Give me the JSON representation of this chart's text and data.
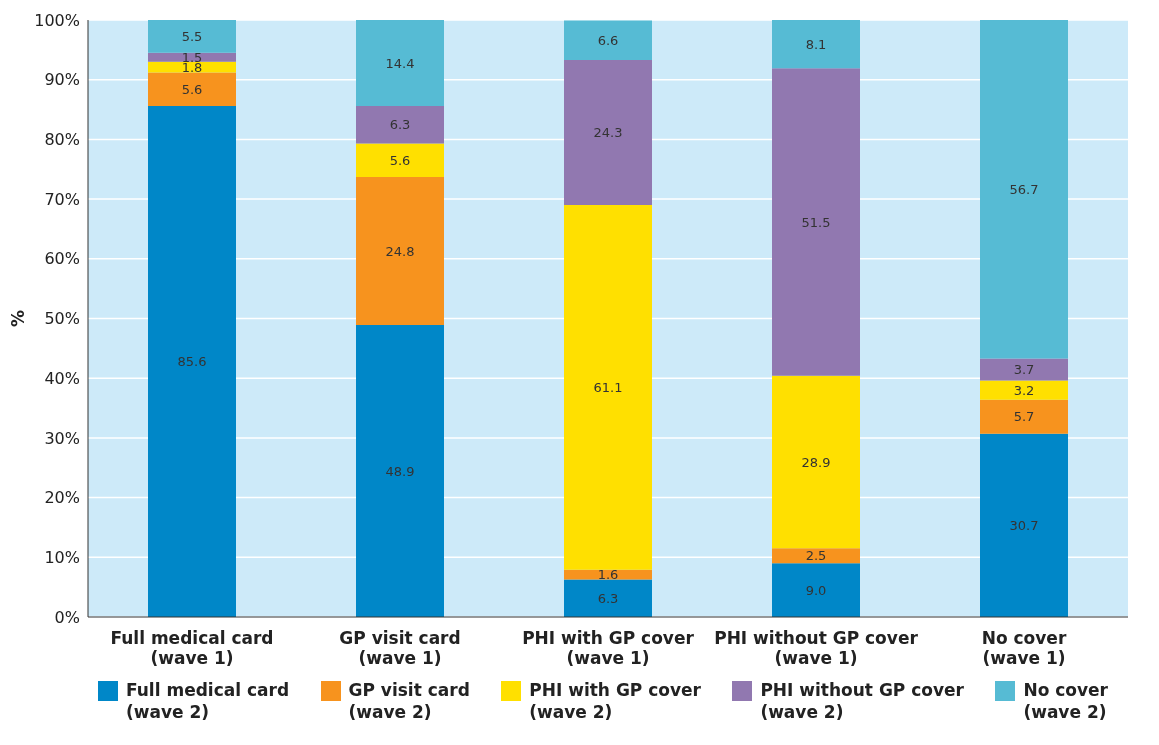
{
  "chart_data": {
    "type": "bar",
    "stacked": true,
    "ylabel": "%",
    "categories": [
      "Full medical card\n(wave 1)",
      "GP visit card\n(wave 1)",
      "PHI with GP cover\n(wave 1)",
      "PHI without GP cover\n(wave 1)",
      "No cover\n(wave 1)"
    ],
    "series": [
      {
        "name": "Full medical card\n(wave 2)",
        "color": "#0087c8",
        "values": [
          85.6,
          48.9,
          6.3,
          9.0,
          30.7
        ],
        "value_labels": [
          "85.6",
          "48.9",
          "6.3",
          "9.0",
          "30.7"
        ]
      },
      {
        "name": "GP visit card\n(wave 2)",
        "color": "#f7931e",
        "values": [
          5.6,
          24.8,
          1.6,
          2.5,
          5.7
        ],
        "value_labels": [
          "5.6",
          "24.8",
          "1.6",
          "2.5",
          "5.7"
        ]
      },
      {
        "name": "PHI with GP cover\n(wave 2)",
        "color": "#ffe000",
        "values": [
          1.8,
          5.6,
          61.1,
          28.9,
          3.2
        ],
        "value_labels": [
          "1.8",
          "5.6",
          "61.1",
          "28.9",
          "3.2"
        ]
      },
      {
        "name": "PHI without GP cover\n(wave 2)",
        "color": "#9178b0",
        "values": [
          1.5,
          6.3,
          24.3,
          51.5,
          3.7
        ],
        "value_labels": [
          "1.5",
          "6.3",
          "24.3",
          "51.5",
          "3.7"
        ]
      },
      {
        "name": "No cover\n(wave 2)",
        "color": "#56bbd4",
        "values": [
          5.5,
          14.4,
          6.6,
          8.1,
          56.7
        ],
        "value_labels": [
          "5.5",
          "14.4",
          "6.6",
          "8.1",
          "56.7"
        ]
      }
    ],
    "ylim": [
      0,
      100
    ],
    "yticks": [
      {
        "value": 0,
        "label": "0%"
      },
      {
        "value": 10,
        "label": "10%"
      },
      {
        "value": 20,
        "label": "20%"
      },
      {
        "value": 30,
        "label": "30%"
      },
      {
        "value": 40,
        "label": "40%"
      },
      {
        "value": 50,
        "label": "50%"
      },
      {
        "value": 60,
        "label": "60%"
      },
      {
        "value": 70,
        "label": "70%"
      },
      {
        "value": 80,
        "label": "80%"
      },
      {
        "value": 90,
        "label": "90%"
      },
      {
        "value": 100,
        "label": "100%"
      }
    ],
    "grid": "y",
    "legend": "bottom"
  }
}
